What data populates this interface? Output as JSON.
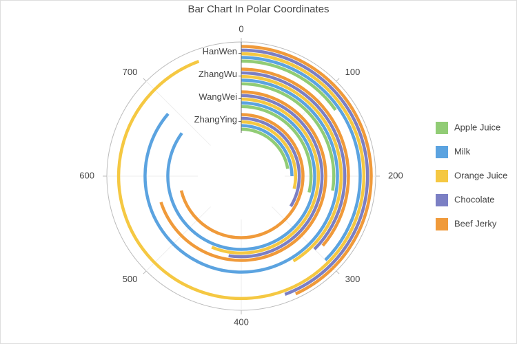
{
  "chart_data": {
    "type": "polar-bar",
    "title": "Bar Chart In Polar Coordinates",
    "categories": [
      "ZhangYing",
      "WangWei",
      "ZhangWu",
      "HanWen"
    ],
    "angle_lim": [
      0,
      800
    ],
    "angle_ticks": [
      0,
      100,
      200,
      300,
      400,
      500,
      600,
      700
    ],
    "series": [
      {
        "name": "Apple Juice",
        "color": "#91cc75",
        "values": [
          180,
          230,
          220,
          122
        ]
      },
      {
        "name": "Milk",
        "color": "#5ba3e0",
        "values": [
          200,
          680,
          690,
          300
        ]
      },
      {
        "name": "Orange Juice",
        "color": "#f5c842",
        "values": [
          230,
          450,
          330,
          755
        ]
      },
      {
        "name": "Chocolate",
        "color": "#7b7fc4",
        "values": [
          270,
          420,
          300,
          355
        ]
      },
      {
        "name": "Beef Jerky",
        "color": "#f09a3a",
        "values": [
          570,
          560,
          290,
          345
        ]
      }
    ],
    "legend": "right"
  }
}
